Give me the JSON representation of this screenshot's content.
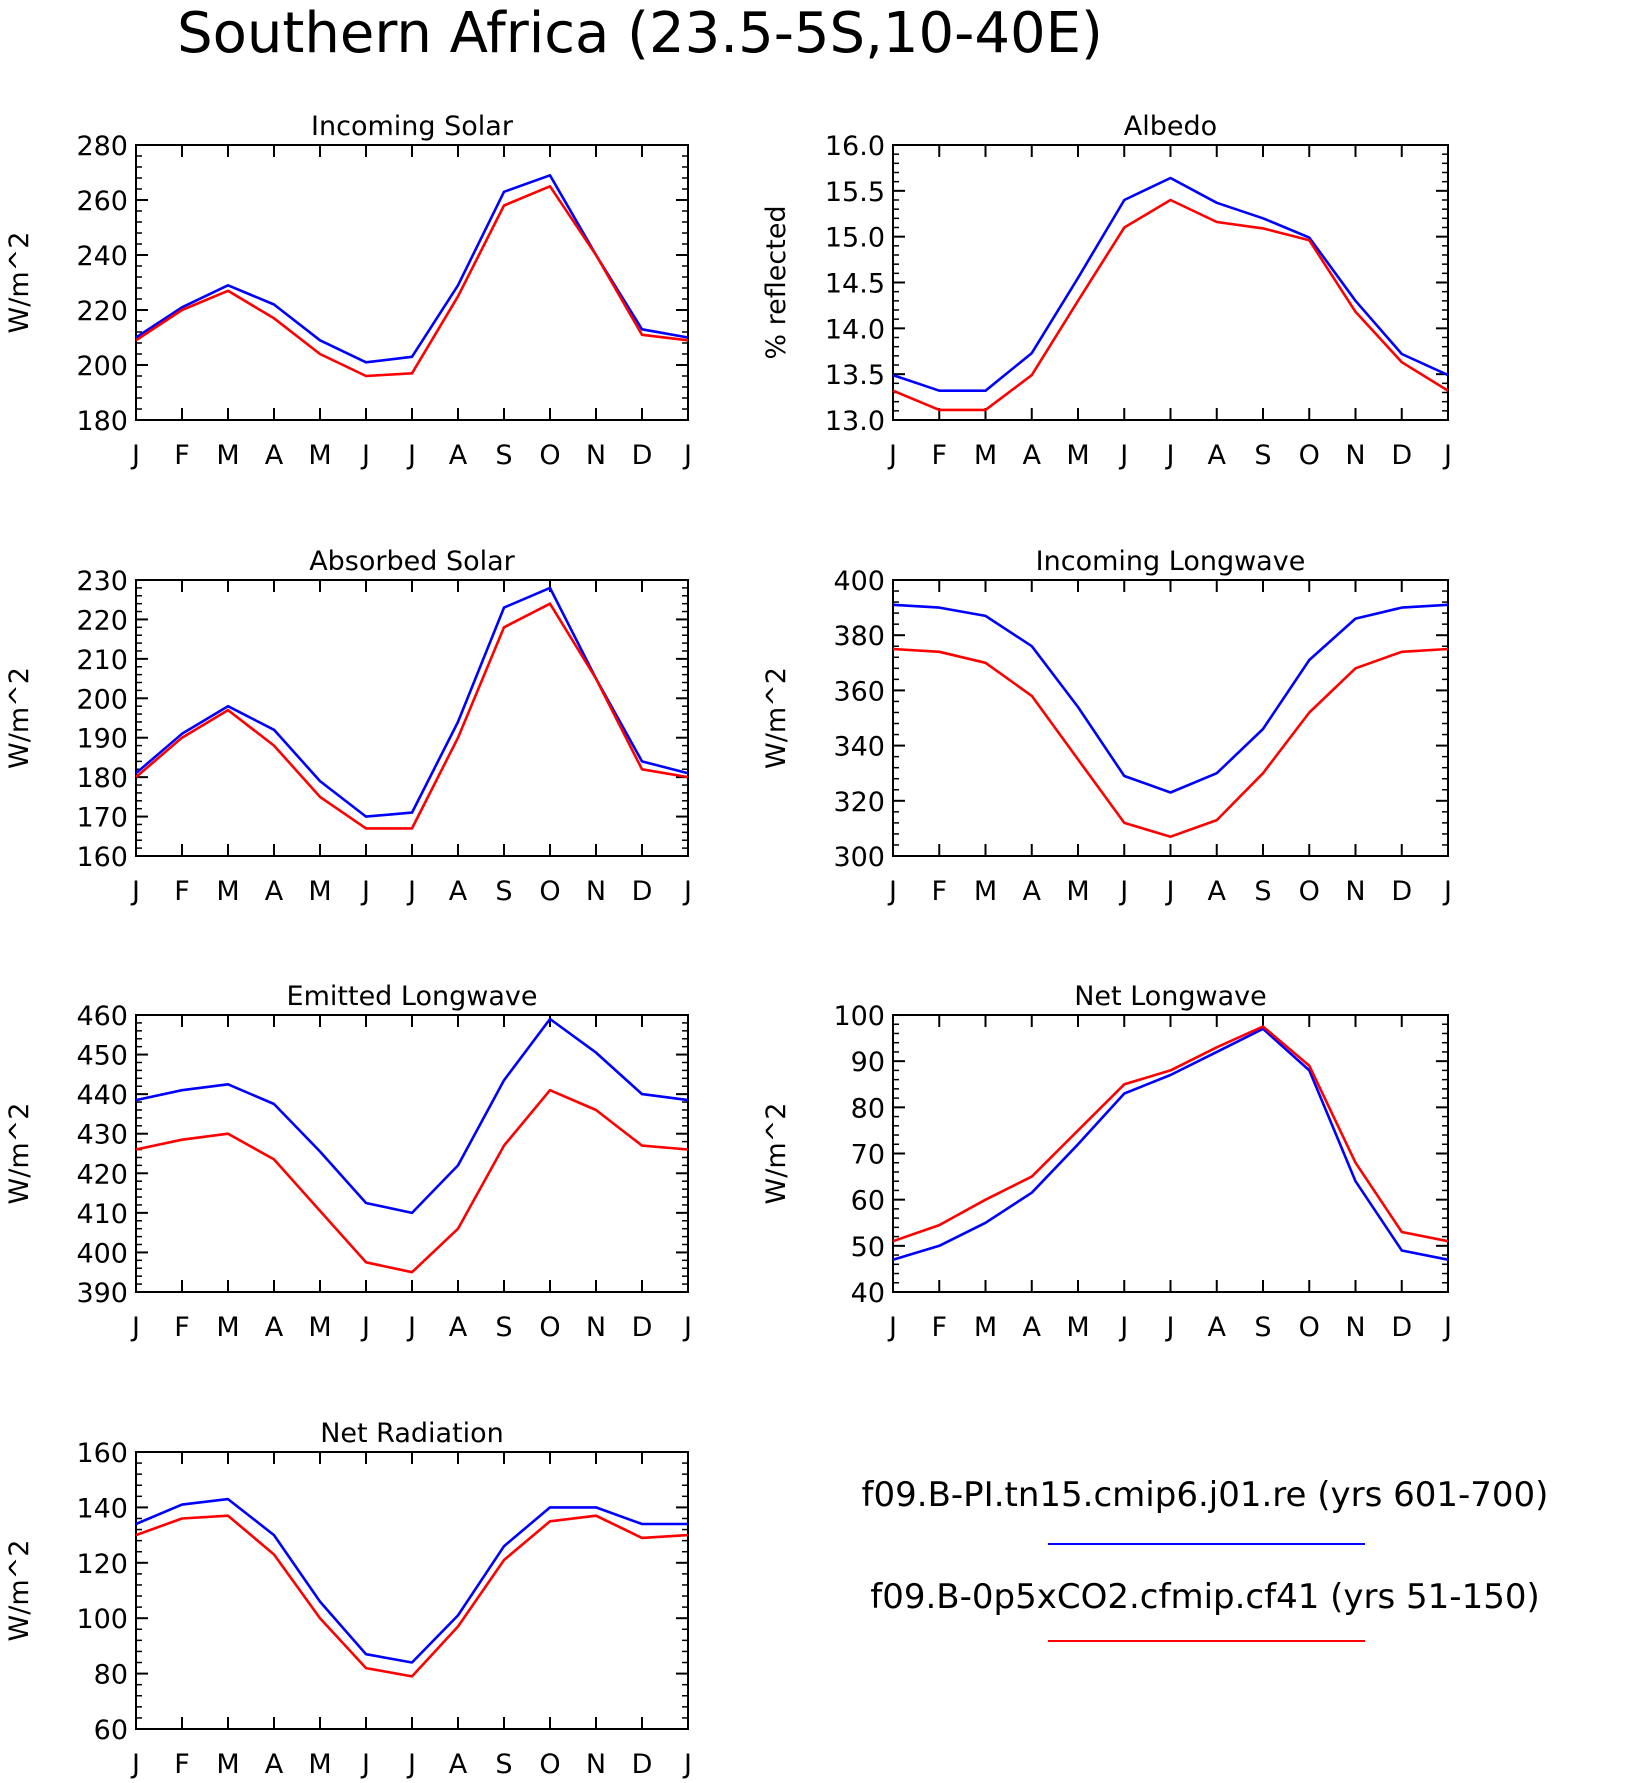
{
  "title": "Southern Africa (23.5-5S,10-40E)",
  "colors": {
    "series1": "#0000ff",
    "series2": "#ff0000",
    "axis": "#000000"
  },
  "legend": {
    "entries": [
      {
        "label": "f09.B-PI.tn15.cmip6.j01.re (yrs 601-700)",
        "color": "#0000ff"
      },
      {
        "label": "f09.B-0p5xCO2.cfmip.cf41 (yrs 51-150)",
        "color": "#ff0000"
      }
    ]
  },
  "chart_data": [
    {
      "type": "line",
      "title": "Incoming Solar",
      "ylabel": "W/m^2",
      "xlabel": "",
      "x": [
        "J",
        "F",
        "M",
        "A",
        "M",
        "J",
        "J",
        "A",
        "S",
        "O",
        "N",
        "D",
        "J"
      ],
      "ylim": [
        180,
        280
      ],
      "yticks": [
        180,
        200,
        220,
        240,
        260,
        280
      ],
      "series": [
        {
          "values": [
            210,
            221,
            229,
            222,
            209,
            201,
            203,
            229,
            263,
            269,
            240,
            213,
            210
          ]
        },
        {
          "values": [
            209,
            220,
            227,
            217,
            204,
            196,
            197,
            225,
            258,
            265,
            240,
            211,
            209
          ]
        }
      ]
    },
    {
      "type": "line",
      "title": "Albedo",
      "ylabel": "% reflected",
      "xlabel": "",
      "x": [
        "J",
        "F",
        "M",
        "A",
        "M",
        "J",
        "J",
        "A",
        "S",
        "O",
        "N",
        "D",
        "J"
      ],
      "ylim": [
        13.0,
        16.0
      ],
      "yticks": [
        "13.0",
        "13.5",
        "14.0",
        "14.5",
        "15.0",
        "15.5",
        "16.0"
      ],
      "series": [
        {
          "values": [
            13.49,
            13.32,
            13.32,
            13.73,
            14.55,
            15.4,
            15.64,
            15.37,
            15.2,
            14.99,
            14.3,
            13.72,
            13.49
          ]
        },
        {
          "values": [
            13.32,
            13.11,
            13.11,
            13.49,
            14.3,
            15.1,
            15.4,
            15.16,
            15.09,
            14.96,
            14.18,
            13.63,
            13.32
          ]
        }
      ]
    },
    {
      "type": "line",
      "title": "Absorbed Solar",
      "ylabel": "W/m^2",
      "xlabel": "",
      "x": [
        "J",
        "F",
        "M",
        "A",
        "M",
        "J",
        "J",
        "A",
        "S",
        "O",
        "N",
        "D",
        "J"
      ],
      "ylim": [
        160,
        230
      ],
      "yticks": [
        160,
        170,
        180,
        190,
        200,
        210,
        220,
        230
      ],
      "series": [
        {
          "values": [
            181,
            191,
            198,
            192,
            179,
            170,
            171,
            194,
            223,
            228,
            205,
            184,
            181
          ]
        },
        {
          "values": [
            180,
            190,
            197,
            188,
            175,
            167,
            167,
            190,
            218,
            224,
            205,
            182,
            180
          ]
        }
      ]
    },
    {
      "type": "line",
      "title": "Incoming Longwave",
      "ylabel": "W/m^2",
      "xlabel": "",
      "x": [
        "J",
        "F",
        "M",
        "A",
        "M",
        "J",
        "J",
        "A",
        "S",
        "O",
        "N",
        "D",
        "J"
      ],
      "ylim": [
        300,
        400
      ],
      "yticks": [
        300,
        320,
        340,
        360,
        380,
        400
      ],
      "series": [
        {
          "values": [
            391,
            390,
            387,
            376,
            354,
            329,
            323,
            330,
            346,
            371,
            386,
            390,
            391
          ]
        },
        {
          "values": [
            375,
            374,
            370,
            358,
            335,
            312,
            307,
            313,
            330,
            352,
            368,
            374,
            375
          ]
        }
      ]
    },
    {
      "type": "line",
      "title": "Emitted Longwave",
      "ylabel": "W/m^2",
      "xlabel": "",
      "x": [
        "J",
        "F",
        "M",
        "A",
        "M",
        "J",
        "J",
        "A",
        "S",
        "O",
        "N",
        "D",
        "J"
      ],
      "ylim": [
        390,
        460
      ],
      "yticks": [
        390,
        400,
        410,
        420,
        430,
        440,
        450,
        460
      ],
      "series": [
        {
          "values": [
            438.5,
            441,
            442.5,
            437.5,
            425.5,
            412.5,
            410,
            422,
            443.5,
            459,
            450.5,
            440,
            438.5
          ]
        },
        {
          "values": [
            426,
            428.5,
            430,
            423.5,
            410.5,
            397.5,
            395,
            406,
            427,
            441,
            436,
            427,
            426
          ]
        }
      ]
    },
    {
      "type": "line",
      "title": "Net Longwave",
      "ylabel": "W/m^2",
      "xlabel": "",
      "x": [
        "J",
        "F",
        "M",
        "A",
        "M",
        "J",
        "J",
        "A",
        "S",
        "O",
        "N",
        "D",
        "J"
      ],
      "ylim": [
        40,
        100
      ],
      "yticks": [
        40,
        50,
        60,
        70,
        80,
        90,
        100
      ],
      "series": [
        {
          "values": [
            47,
            50,
            55,
            61.5,
            72,
            83,
            87,
            92,
            97,
            88,
            64,
            49,
            47
          ]
        },
        {
          "values": [
            51,
            54.5,
            60,
            65,
            75,
            85,
            88,
            93,
            97.5,
            89,
            68,
            53,
            51
          ]
        }
      ]
    },
    {
      "type": "line",
      "title": "Net Radiation",
      "ylabel": "W/m^2",
      "xlabel": "",
      "x": [
        "J",
        "F",
        "M",
        "A",
        "M",
        "J",
        "J",
        "A",
        "S",
        "O",
        "N",
        "D",
        "J"
      ],
      "ylim": [
        60,
        160
      ],
      "yticks": [
        60,
        80,
        100,
        120,
        140,
        160
      ],
      "series": [
        {
          "values": [
            134,
            141,
            143,
            130,
            106,
            87,
            84,
            101,
            126,
            140,
            140,
            134,
            134
          ]
        },
        {
          "values": [
            130,
            136,
            137,
            123,
            100,
            82,
            79,
            97,
            121,
            135,
            137,
            129,
            130
          ]
        }
      ]
    }
  ]
}
